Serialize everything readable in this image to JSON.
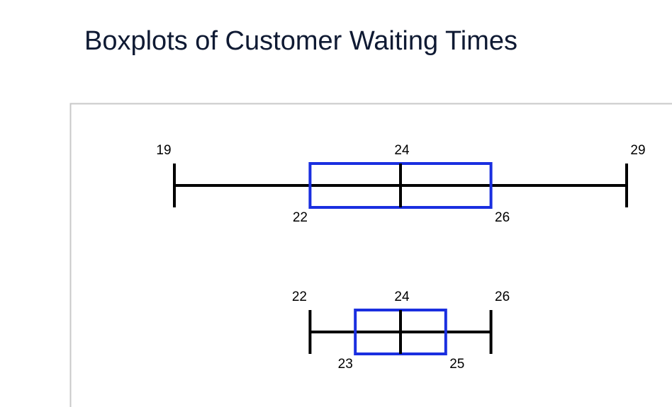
{
  "chart_data": {
    "type": "boxplot",
    "title": "Boxplots of Customer Waiting Times",
    "box_color": "#1a2fe0",
    "whisker_color": "#000000",
    "boxes": [
      {
        "min": 19,
        "q1": 22,
        "median": 24,
        "q3": 26,
        "max": 29
      },
      {
        "min": 22,
        "q1": 23,
        "median": 24,
        "q3": 25,
        "max": 26
      }
    ]
  }
}
